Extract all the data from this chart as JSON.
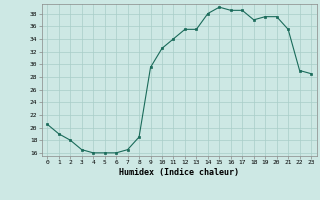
{
  "x": [
    0,
    1,
    2,
    3,
    4,
    5,
    6,
    7,
    8,
    9,
    10,
    11,
    12,
    13,
    14,
    15,
    16,
    17,
    18,
    19,
    20,
    21,
    22,
    23
  ],
  "y": [
    20.5,
    19.0,
    18.0,
    16.5,
    16.0,
    16.0,
    16.0,
    16.5,
    18.5,
    29.5,
    32.5,
    34.0,
    35.5,
    35.5,
    38.0,
    39.0,
    38.5,
    38.5,
    37.0,
    37.5,
    37.5,
    35.5,
    29.0,
    28.5
  ],
  "xlabel": "Humidex (Indice chaleur)",
  "xlim": [
    -0.5,
    23.5
  ],
  "ylim": [
    15.5,
    39.5
  ],
  "yticks": [
    16,
    18,
    20,
    22,
    24,
    26,
    28,
    30,
    32,
    34,
    36,
    38
  ],
  "xticks": [
    0,
    1,
    2,
    3,
    4,
    5,
    6,
    7,
    8,
    9,
    10,
    11,
    12,
    13,
    14,
    15,
    16,
    17,
    18,
    19,
    20,
    21,
    22,
    23
  ],
  "line_color": "#1a6b5a",
  "marker_color": "#1a6b5a",
  "bg_color": "#cde8e4",
  "grid_color": "#a8cec8"
}
